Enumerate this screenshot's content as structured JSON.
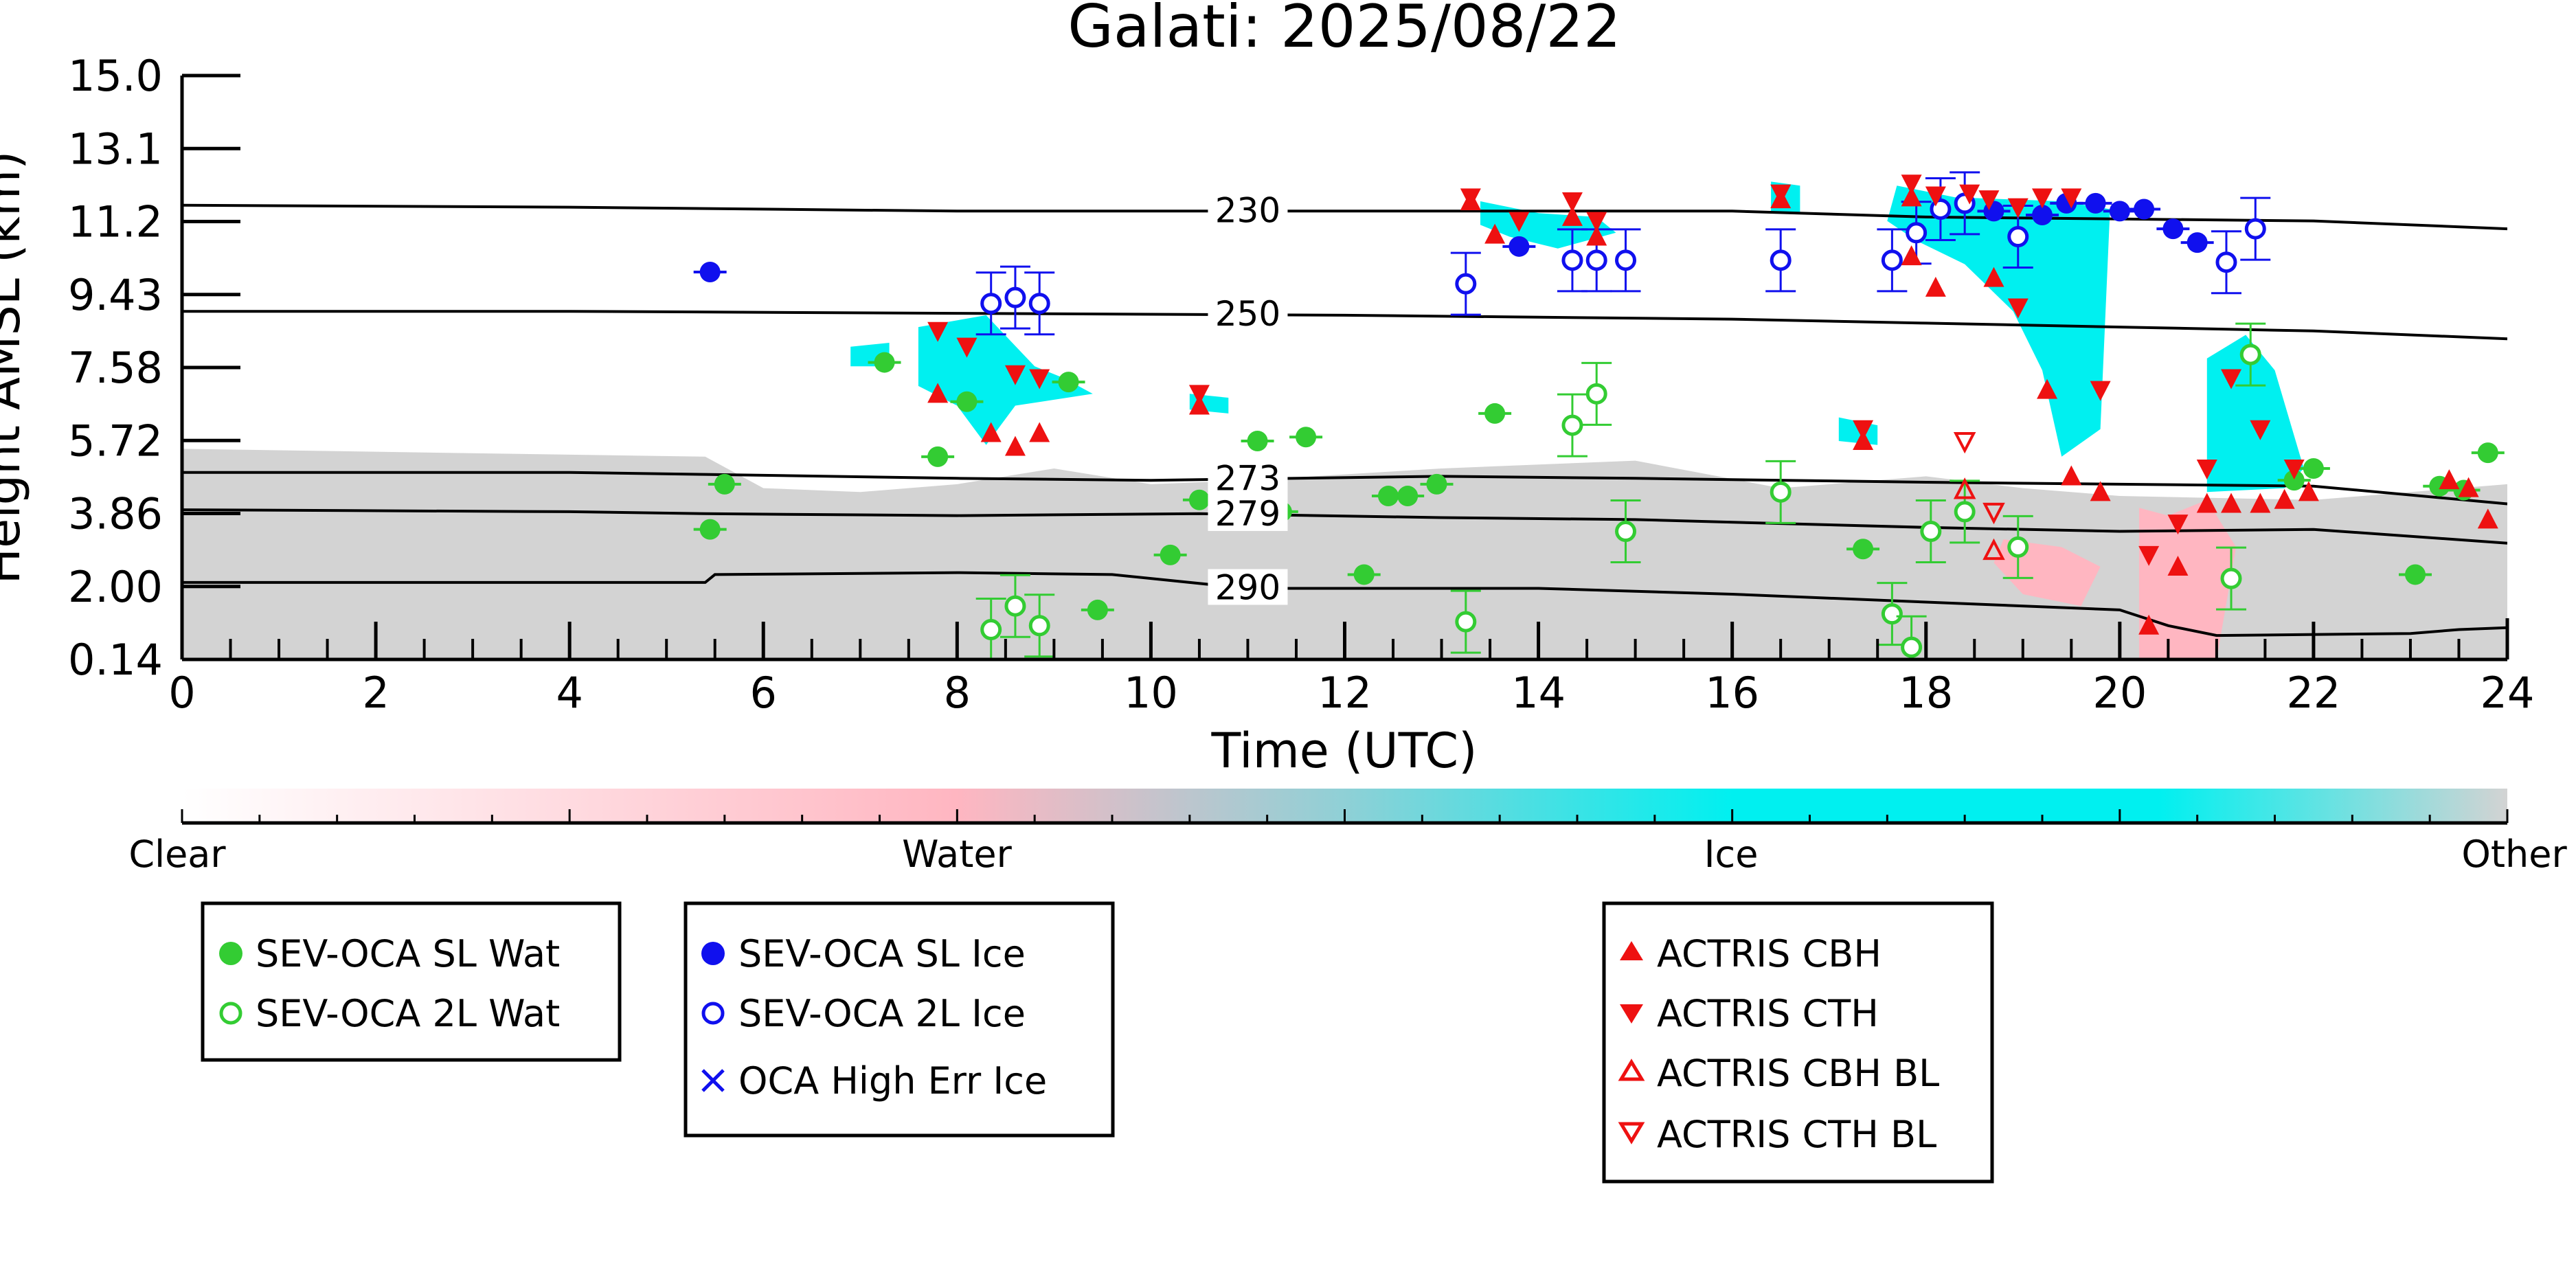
{
  "chart_data": {
    "type": "scatter",
    "title": "Galati: 2025/08/22",
    "xlabel": "Time (UTC)",
    "ylabel": "Height AMSL (km)",
    "xlim": [
      0,
      24
    ],
    "ylim": [
      0.14,
      15.0
    ],
    "x_ticks": [
      "0",
      "2",
      "4",
      "6",
      "8",
      "10",
      "12",
      "14",
      "16",
      "18",
      "20",
      "22",
      "24"
    ],
    "y_ticks": [
      "0.14",
      "2.00",
      "3.86",
      "5.72",
      "7.58",
      "9.43",
      "11.2",
      "13.1",
      "15.0"
    ],
    "colorbar": {
      "labels": [
        "Clear",
        "Water",
        "Ice",
        "Other"
      ],
      "colors": [
        "#ffffff",
        "#ffb6c1",
        "#00f0f0",
        "#d3d3d3"
      ]
    },
    "isotherms": [
      {
        "label": "230",
        "points": [
          [
            0,
            11.7
          ],
          [
            4,
            11.65
          ],
          [
            8,
            11.55
          ],
          [
            12,
            11.55
          ],
          [
            16,
            11.55
          ],
          [
            18,
            11.4
          ],
          [
            20,
            11.35
          ],
          [
            22,
            11.3
          ],
          [
            24,
            11.1
          ]
        ]
      },
      {
        "label": "250",
        "points": [
          [
            0,
            9.0
          ],
          [
            4,
            9.0
          ],
          [
            8,
            8.95
          ],
          [
            12,
            8.9
          ],
          [
            16,
            8.8
          ],
          [
            18,
            8.7
          ],
          [
            20,
            8.6
          ],
          [
            22,
            8.5
          ],
          [
            24,
            8.3
          ]
        ]
      },
      {
        "label": "273",
        "points": [
          [
            0,
            4.9
          ],
          [
            4,
            4.9
          ],
          [
            5.4,
            4.85
          ],
          [
            8,
            4.75
          ],
          [
            10,
            4.7
          ],
          [
            13,
            4.8
          ],
          [
            15,
            4.75
          ],
          [
            18,
            4.65
          ],
          [
            20,
            4.6
          ],
          [
            22,
            4.55
          ],
          [
            24,
            4.1
          ]
        ]
      },
      {
        "label": "279",
        "points": [
          [
            0,
            3.95
          ],
          [
            4,
            3.9
          ],
          [
            5.4,
            3.85
          ],
          [
            8,
            3.8
          ],
          [
            10.5,
            3.85
          ],
          [
            13,
            3.75
          ],
          [
            15,
            3.7
          ],
          [
            18,
            3.5
          ],
          [
            20,
            3.4
          ],
          [
            22,
            3.45
          ],
          [
            24,
            3.1
          ]
        ]
      },
      {
        "label": "290",
        "points": [
          [
            0,
            2.1
          ],
          [
            5.4,
            2.1
          ],
          [
            5.5,
            2.3
          ],
          [
            8,
            2.35
          ],
          [
            9.6,
            2.3
          ],
          [
            11,
            1.95
          ],
          [
            14,
            1.95
          ],
          [
            16,
            1.8
          ],
          [
            18,
            1.6
          ],
          [
            20,
            1.4
          ],
          [
            20.5,
            1.0
          ],
          [
            21,
            0.75
          ],
          [
            23,
            0.8
          ],
          [
            23.5,
            0.9
          ],
          [
            24,
            0.95
          ]
        ]
      }
    ],
    "background_regions": [
      {
        "class": "Other",
        "polygon": [
          [
            0,
            5.5
          ],
          [
            5.4,
            5.3
          ],
          [
            6,
            4.5
          ],
          [
            7,
            4.4
          ],
          [
            8,
            4.6
          ],
          [
            9,
            5.0
          ],
          [
            10,
            4.6
          ],
          [
            11,
            4.7
          ],
          [
            13,
            5.0
          ],
          [
            15,
            5.2
          ],
          [
            16.5,
            4.5
          ],
          [
            18,
            4.8
          ],
          [
            19,
            4.5
          ],
          [
            20,
            4.3
          ],
          [
            22,
            4.2
          ],
          [
            23.5,
            4.5
          ],
          [
            24,
            4.6
          ],
          [
            24,
            0.14
          ],
          [
            0,
            0.14
          ]
        ]
      },
      {
        "class": "Water",
        "polygon": [
          [
            20.2,
            4.0
          ],
          [
            20.5,
            3.8
          ],
          [
            20.9,
            4.2
          ],
          [
            21.2,
            3.0
          ],
          [
            21.0,
            0.14
          ],
          [
            20.2,
            0.14
          ]
        ]
      },
      {
        "class": "Water",
        "polygon": [
          [
            18.8,
            3.2
          ],
          [
            19.4,
            3.0
          ],
          [
            19.8,
            2.5
          ],
          [
            19.6,
            1.5
          ],
          [
            19.0,
            1.8
          ],
          [
            18.7,
            2.6
          ]
        ]
      },
      {
        "class": "Ice",
        "polygon": [
          [
            7.6,
            8.6
          ],
          [
            8.3,
            8.9
          ],
          [
            8.8,
            7.6
          ],
          [
            9.1,
            7.3
          ],
          [
            9.4,
            6.9
          ],
          [
            8.6,
            6.6
          ],
          [
            8.3,
            5.6
          ],
          [
            8.0,
            6.6
          ],
          [
            7.6,
            7.1
          ]
        ]
      },
      {
        "class": "Ice",
        "polygon": [
          [
            13.4,
            11.8
          ],
          [
            14.0,
            11.5
          ],
          [
            14.6,
            11.4
          ],
          [
            14.8,
            11.0
          ],
          [
            14.2,
            10.6
          ],
          [
            13.7,
            10.9
          ],
          [
            13.4,
            11.2
          ]
        ]
      },
      {
        "class": "Ice",
        "polygon": [
          [
            16.4,
            12.3
          ],
          [
            16.7,
            12.2
          ],
          [
            16.7,
            11.5
          ],
          [
            16.4,
            11.5
          ]
        ]
      },
      {
        "class": "Ice",
        "polygon": [
          [
            17.7,
            12.2
          ],
          [
            18.3,
            11.9
          ],
          [
            19.4,
            11.8
          ],
          [
            19.9,
            11.6
          ],
          [
            19.8,
            6.0
          ],
          [
            19.4,
            5.3
          ],
          [
            19.2,
            7.5
          ],
          [
            18.9,
            9.0
          ],
          [
            18.4,
            10.2
          ],
          [
            17.9,
            10.8
          ],
          [
            17.6,
            11.3
          ]
        ]
      },
      {
        "class": "Ice",
        "polygon": [
          [
            20.9,
            7.8
          ],
          [
            21.3,
            8.4
          ],
          [
            21.6,
            7.5
          ],
          [
            21.9,
            5.0
          ],
          [
            21.7,
            4.5
          ],
          [
            20.9,
            4.4
          ],
          [
            20.9,
            5.6
          ]
        ]
      },
      {
        "class": "Ice",
        "polygon": [
          [
            17.1,
            6.3
          ],
          [
            17.5,
            6.1
          ],
          [
            17.5,
            5.6
          ],
          [
            17.1,
            5.7
          ]
        ]
      },
      {
        "class": "Ice",
        "polygon": [
          [
            6.9,
            8.1
          ],
          [
            7.3,
            8.2
          ],
          [
            7.3,
            7.6
          ],
          [
            6.9,
            7.6
          ]
        ]
      },
      {
        "class": "Ice",
        "polygon": [
          [
            10.4,
            6.9
          ],
          [
            10.8,
            6.8
          ],
          [
            10.8,
            6.4
          ],
          [
            10.4,
            6.5
          ]
        ]
      }
    ],
    "series": [
      {
        "name": "SEV-OCA SL Wat",
        "color": "#33cc33",
        "marker": "filled-circle",
        "points": [
          {
            "x": 5.45,
            "y": 3.45
          },
          {
            "x": 5.6,
            "y": 4.6
          },
          {
            "x": 7.25,
            "y": 7.7
          },
          {
            "x": 7.8,
            "y": 5.3
          },
          {
            "x": 8.1,
            "y": 6.7
          },
          {
            "x": 9.15,
            "y": 7.2
          },
          {
            "x": 9.45,
            "y": 1.4
          },
          {
            "x": 10.2,
            "y": 2.8
          },
          {
            "x": 10.5,
            "y": 4.2
          },
          {
            "x": 11.1,
            "y": 5.7
          },
          {
            "x": 11.35,
            "y": 3.9
          },
          {
            "x": 11.6,
            "y": 5.8
          },
          {
            "x": 12.2,
            "y": 2.3
          },
          {
            "x": 12.45,
            "y": 4.3
          },
          {
            "x": 12.65,
            "y": 4.3
          },
          {
            "x": 12.95,
            "y": 4.6
          },
          {
            "x": 13.55,
            "y": 6.4
          },
          {
            "x": 17.35,
            "y": 2.95
          },
          {
            "x": 21.8,
            "y": 4.7
          },
          {
            "x": 22.0,
            "y": 5.0
          },
          {
            "x": 23.05,
            "y": 2.3
          },
          {
            "x": 23.3,
            "y": 4.55
          },
          {
            "x": 23.55,
            "y": 4.45
          },
          {
            "x": 23.8,
            "y": 5.4
          }
        ]
      },
      {
        "name": "SEV-OCA 2L Wat",
        "color": "#33cc33",
        "marker": "open-circle",
        "points": [
          {
            "x": 8.35,
            "y": 0.9
          },
          {
            "x": 8.6,
            "y": 1.5
          },
          {
            "x": 8.85,
            "y": 1.0
          },
          {
            "x": 13.25,
            "y": 1.1
          },
          {
            "x": 14.35,
            "y": 6.1
          },
          {
            "x": 14.6,
            "y": 6.9
          },
          {
            "x": 14.9,
            "y": 3.4
          },
          {
            "x": 16.5,
            "y": 4.4
          },
          {
            "x": 17.65,
            "y": 1.3
          },
          {
            "x": 17.85,
            "y": 0.45
          },
          {
            "x": 18.05,
            "y": 3.4
          },
          {
            "x": 18.4,
            "y": 3.9
          },
          {
            "x": 18.95,
            "y": 3.0
          },
          {
            "x": 21.15,
            "y": 2.2
          },
          {
            "x": 21.35,
            "y": 7.9
          }
        ]
      },
      {
        "name": "SEV-OCA SL Ice",
        "color": "#1010ee",
        "marker": "filled-circle",
        "points": [
          {
            "x": 5.45,
            "y": 10.0
          },
          {
            "x": 13.8,
            "y": 10.65
          },
          {
            "x": 18.7,
            "y": 11.55
          },
          {
            "x": 19.2,
            "y": 11.45
          },
          {
            "x": 19.45,
            "y": 11.75
          },
          {
            "x": 19.75,
            "y": 11.75
          },
          {
            "x": 20.0,
            "y": 11.55
          },
          {
            "x": 20.25,
            "y": 11.6
          },
          {
            "x": 20.55,
            "y": 11.1
          },
          {
            "x": 20.8,
            "y": 10.75
          }
        ]
      },
      {
        "name": "SEV-OCA 2L Ice",
        "color": "#1010ee",
        "marker": "open-circle",
        "points": [
          {
            "x": 8.35,
            "y": 9.2
          },
          {
            "x": 8.6,
            "y": 9.35
          },
          {
            "x": 8.85,
            "y": 9.2
          },
          {
            "x": 13.25,
            "y": 9.7
          },
          {
            "x": 14.35,
            "y": 10.3
          },
          {
            "x": 14.6,
            "y": 10.3
          },
          {
            "x": 14.9,
            "y": 10.3
          },
          {
            "x": 16.5,
            "y": 10.3
          },
          {
            "x": 17.65,
            "y": 10.3
          },
          {
            "x": 17.9,
            "y": 11.0
          },
          {
            "x": 18.15,
            "y": 11.6
          },
          {
            "x": 18.4,
            "y": 11.75
          },
          {
            "x": 18.95,
            "y": 10.9
          },
          {
            "x": 21.1,
            "y": 10.25
          },
          {
            "x": 21.4,
            "y": 11.1
          }
        ]
      },
      {
        "name": "OCA High Err Ice",
        "color": "#1010ee",
        "marker": "x",
        "points": []
      },
      {
        "name": "ACTRIS CBH",
        "color": "#ee1111",
        "marker": "triangle-up",
        "points": [
          {
            "x": 7.8,
            "y": 6.9
          },
          {
            "x": 8.35,
            "y": 5.9
          },
          {
            "x": 8.6,
            "y": 5.55
          },
          {
            "x": 8.85,
            "y": 5.9
          },
          {
            "x": 10.5,
            "y": 6.6
          },
          {
            "x": 13.3,
            "y": 11.8
          },
          {
            "x": 13.55,
            "y": 10.95
          },
          {
            "x": 14.35,
            "y": 11.4
          },
          {
            "x": 14.6,
            "y": 10.9
          },
          {
            "x": 16.5,
            "y": 11.85
          },
          {
            "x": 17.35,
            "y": 5.7
          },
          {
            "x": 17.85,
            "y": 11.9
          },
          {
            "x": 17.85,
            "y": 10.4
          },
          {
            "x": 18.1,
            "y": 9.6
          },
          {
            "x": 18.7,
            "y": 9.85
          },
          {
            "x": 19.25,
            "y": 7.0
          },
          {
            "x": 19.5,
            "y": 4.8
          },
          {
            "x": 19.8,
            "y": 4.4
          },
          {
            "x": 20.3,
            "y": 1.0
          },
          {
            "x": 20.6,
            "y": 2.5
          },
          {
            "x": 20.9,
            "y": 4.1
          },
          {
            "x": 21.15,
            "y": 4.1
          },
          {
            "x": 21.45,
            "y": 4.1
          },
          {
            "x": 21.7,
            "y": 4.2
          },
          {
            "x": 21.95,
            "y": 4.4
          },
          {
            "x": 23.4,
            "y": 4.7
          },
          {
            "x": 23.6,
            "y": 4.5
          },
          {
            "x": 23.8,
            "y": 3.7
          }
        ]
      },
      {
        "name": "ACTRIS CTH",
        "color": "#ee1111",
        "marker": "triangle-down",
        "points": [
          {
            "x": 7.8,
            "y": 8.5
          },
          {
            "x": 8.1,
            "y": 8.1
          },
          {
            "x": 8.6,
            "y": 7.4
          },
          {
            "x": 8.85,
            "y": 7.3
          },
          {
            "x": 10.5,
            "y": 6.9
          },
          {
            "x": 13.3,
            "y": 11.9
          },
          {
            "x": 13.8,
            "y": 11.3
          },
          {
            "x": 14.35,
            "y": 11.8
          },
          {
            "x": 14.6,
            "y": 11.3
          },
          {
            "x": 16.5,
            "y": 12.0
          },
          {
            "x": 17.35,
            "y": 6.0
          },
          {
            "x": 17.85,
            "y": 12.25
          },
          {
            "x": 18.1,
            "y": 11.95
          },
          {
            "x": 18.45,
            "y": 12.0
          },
          {
            "x": 18.65,
            "y": 11.85
          },
          {
            "x": 18.95,
            "y": 11.65
          },
          {
            "x": 19.2,
            "y": 11.9
          },
          {
            "x": 19.5,
            "y": 11.9
          },
          {
            "x": 19.8,
            "y": 7.0
          },
          {
            "x": 18.95,
            "y": 9.1
          },
          {
            "x": 20.6,
            "y": 3.6
          },
          {
            "x": 20.9,
            "y": 5.0
          },
          {
            "x": 21.15,
            "y": 7.3
          },
          {
            "x": 21.45,
            "y": 6.0
          },
          {
            "x": 21.8,
            "y": 5.0
          },
          {
            "x": 20.3,
            "y": 2.8
          }
        ]
      },
      {
        "name": "ACTRIS CBH BL",
        "color": "#ee1111",
        "marker": "open-triangle-up",
        "points": [
          {
            "x": 18.4,
            "y": 4.45
          },
          {
            "x": 18.7,
            "y": 2.9
          }
        ]
      },
      {
        "name": "ACTRIS CTH BL",
        "color": "#ee1111",
        "marker": "open-triangle-down",
        "points": [
          {
            "x": 18.4,
            "y": 5.7
          },
          {
            "x": 18.7,
            "y": 3.9
          }
        ]
      }
    ]
  }
}
